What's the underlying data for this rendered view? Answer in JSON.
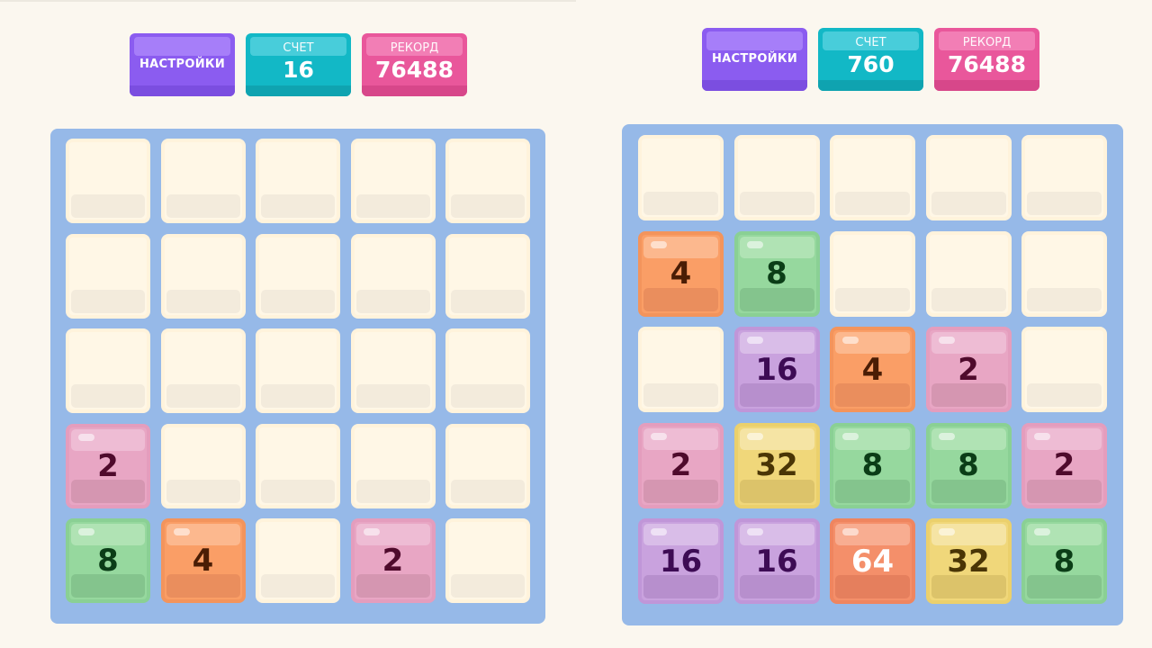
{
  "colors": {
    "background": "#fbf7ef",
    "board": "#96b9e8",
    "empty_tile": "#fff7e6",
    "settings_button": "#8b5cf0",
    "score_box": "#12b8c6",
    "best_box": "#e9579b",
    "tile_2": "#e8a6c4",
    "tile_4": "#fa9e66",
    "tile_8": "#96d89e",
    "tile_16": "#c9a2de",
    "tile_32": "#f0d77a",
    "tile_64": "#f48f6a"
  },
  "games": [
    {
      "settings_label": "НАСТРОЙКИ",
      "score_label": "СЧЕТ",
      "score_value": "16",
      "best_label": "РЕКОРД",
      "best_value": "76488",
      "board": [
        [
          "",
          "",
          "",
          "",
          ""
        ],
        [
          "",
          "",
          "",
          "",
          ""
        ],
        [
          "",
          "",
          "",
          "",
          ""
        ],
        [
          "2",
          "",
          "",
          "",
          ""
        ],
        [
          "8",
          "4",
          "",
          "2",
          ""
        ]
      ]
    },
    {
      "settings_label": "НАСТРОЙКИ",
      "score_label": "СЧЕТ",
      "score_value": "760",
      "best_label": "РЕКОРД",
      "best_value": "76488",
      "board": [
        [
          "",
          "",
          "",
          "",
          ""
        ],
        [
          "4",
          "8",
          "",
          "",
          ""
        ],
        [
          "",
          "16",
          "4",
          "2",
          ""
        ],
        [
          "2",
          "32",
          "8",
          "8",
          "2"
        ],
        [
          "16",
          "16",
          "64",
          "32",
          "8"
        ]
      ]
    }
  ]
}
